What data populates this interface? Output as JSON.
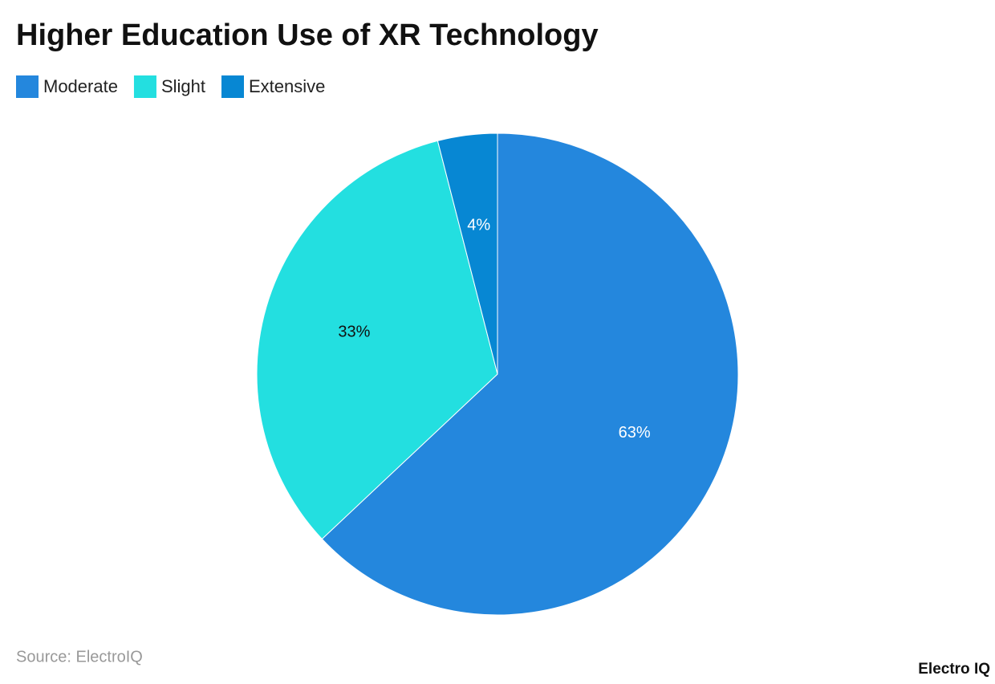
{
  "chart_data": {
    "type": "pie",
    "title": "Higher Education Use of XR Technology",
    "categories": [
      "Moderate",
      "Slight",
      "Extensive"
    ],
    "values": [
      63,
      33,
      4
    ],
    "value_labels": [
      "63%",
      "33%",
      "4%"
    ],
    "colors": [
      "#2487dd",
      "#23dfe0",
      "#0787d3"
    ],
    "label_colors": [
      "#ffffff",
      "#111111",
      "#ffffff"
    ],
    "legend": "top-left",
    "source": "Source: ElectroIQ",
    "logo": "Electro IQ"
  }
}
